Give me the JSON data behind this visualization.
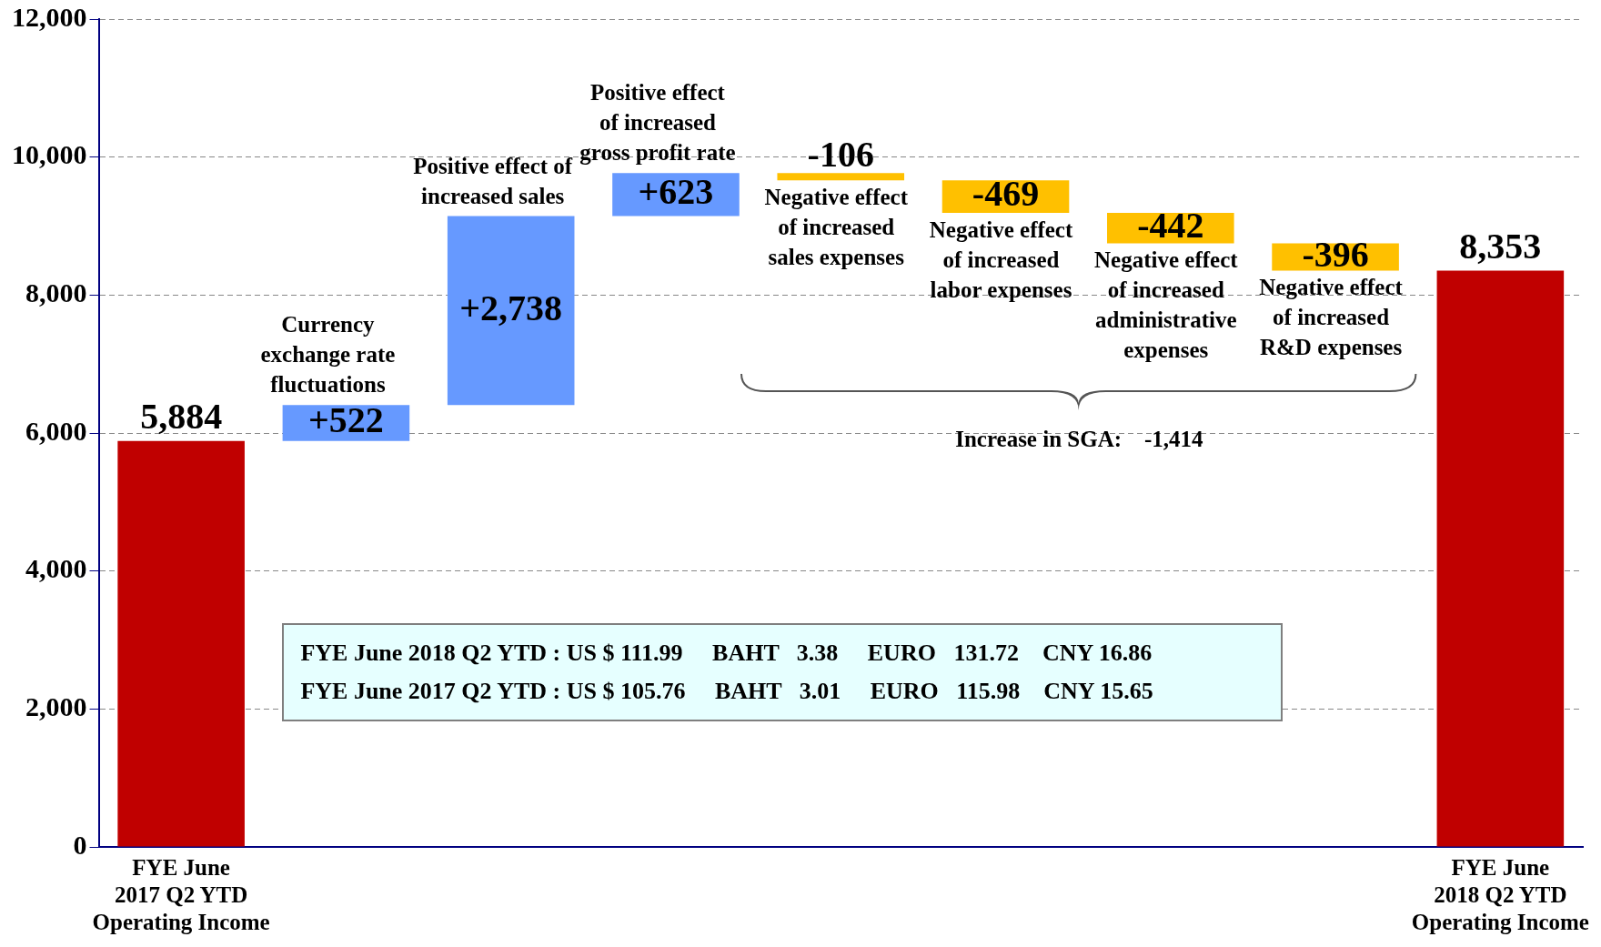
{
  "chart_data": {
    "type": "bar",
    "categories": [
      "FYE June\n2017 Q2 YTD\nOperating Income",
      "Currency\nexchange rate\nfluctuations",
      "Positive effect of\nincreased sales",
      "Positive effect\nof increased\ngross profit rate",
      "Negative effect\nof increased\nsales expenses",
      "Negative effect\nof increased\nlabor expenses",
      "Negative effect\nof increased\nadministrative\nexpenses",
      "Negative effect\nof increased\nR&D expenses",
      "FYE June\n2018 Q2 YTD\nOperating Income"
    ],
    "values": [
      5884,
      522,
      2738,
      623,
      -106,
      -469,
      -442,
      -396,
      8353
    ],
    "base": [
      0,
      5884,
      6406,
      9144,
      9767,
      9661,
      9192,
      8750,
      0
    ],
    "colors": [
      "#c00000",
      "#6699ff",
      "#6699ff",
      "#6699ff",
      "#ffc000",
      "#ffc000",
      "#ffc000",
      "#ffc000",
      "#c00000"
    ],
    "value_labels": [
      "5,884",
      "+522",
      "+2,738",
      "+623",
      "-106",
      "-469",
      "-442",
      "-396",
      "8,353"
    ],
    "ylim": [
      0,
      12000
    ],
    "yticks": [
      {
        "value": 0,
        "label": "0"
      },
      {
        "value": 2000,
        "label": "2,000"
      },
      {
        "value": 4000,
        "label": "4,000"
      },
      {
        "value": 6000,
        "label": "6,000"
      },
      {
        "value": 8000,
        "label": "8,000"
      },
      {
        "value": 10000,
        "label": "10,000"
      },
      {
        "value": 12000,
        "label": "12,000"
      }
    ],
    "grid": "y",
    "legend": false,
    "annotations": [
      "Increase in SGA:    -1,414",
      "FYE June 2018 Q2 YTD : US $ 111.99     BAHT   3.38     EURO   131.72    CNY 16.86",
      "FYE June 2017 Q2 YTD : US $ 105.76     BAHT   3.01     EURO   115.98    CNY 15.65"
    ]
  }
}
